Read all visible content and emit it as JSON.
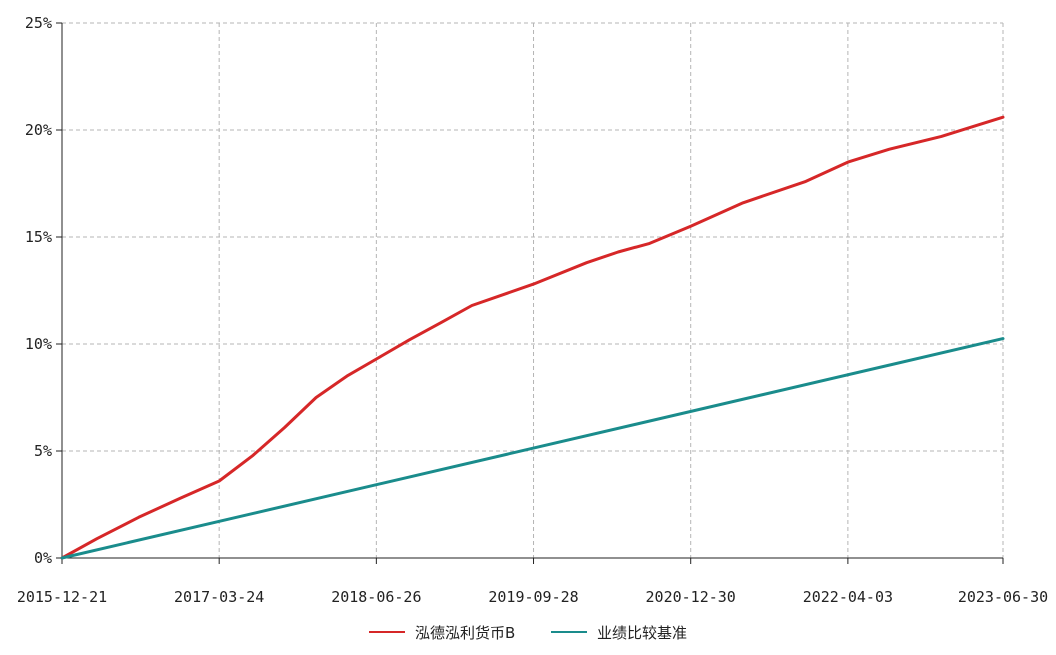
{
  "chart_data": {
    "type": "line",
    "title": "",
    "xlabel": "",
    "ylabel": "",
    "x_ticks": [
      "2015-12-21",
      "2017-03-24",
      "2018-06-26",
      "2019-09-28",
      "2020-12-30",
      "2022-04-03",
      "2023-06-30"
    ],
    "y_ticks": [
      "0%",
      "5%",
      "10%",
      "15%",
      "20%",
      "25%"
    ],
    "ylim": [
      0,
      25
    ],
    "xlim": [
      "2015-12-21",
      "2023-06-30"
    ],
    "grid": true,
    "legend_position": "bottom",
    "series": [
      {
        "name": "泓德泓利货币B",
        "color": "#d62728",
        "points": [
          [
            "2015-12-21",
            0.0
          ],
          [
            "2016-04-01",
            0.9
          ],
          [
            "2016-08-01",
            1.9
          ],
          [
            "2016-12-01",
            2.8
          ],
          [
            "2017-03-24",
            3.6
          ],
          [
            "2017-07-01",
            4.8
          ],
          [
            "2017-10-01",
            6.1
          ],
          [
            "2018-01-01",
            7.5
          ],
          [
            "2018-04-01",
            8.5
          ],
          [
            "2018-06-26",
            9.3
          ],
          [
            "2018-10-01",
            10.2
          ],
          [
            "2019-01-01",
            11.0
          ],
          [
            "2019-04-01",
            11.8
          ],
          [
            "2019-09-28",
            12.8
          ],
          [
            "2020-03-01",
            13.8
          ],
          [
            "2020-06-01",
            14.3
          ],
          [
            "2020-09-01",
            14.7
          ],
          [
            "2020-12-30",
            15.5
          ],
          [
            "2021-06-01",
            16.6
          ],
          [
            "2021-12-01",
            17.6
          ],
          [
            "2022-04-03",
            18.5
          ],
          [
            "2022-08-01",
            19.1
          ],
          [
            "2023-01-01",
            19.7
          ],
          [
            "2023-06-30",
            20.6
          ]
        ]
      },
      {
        "name": "业绩比较基准",
        "color": "#1a8c8c",
        "points": [
          [
            "2015-12-21",
            0.0
          ],
          [
            "2023-06-30",
            10.25
          ]
        ]
      }
    ]
  }
}
